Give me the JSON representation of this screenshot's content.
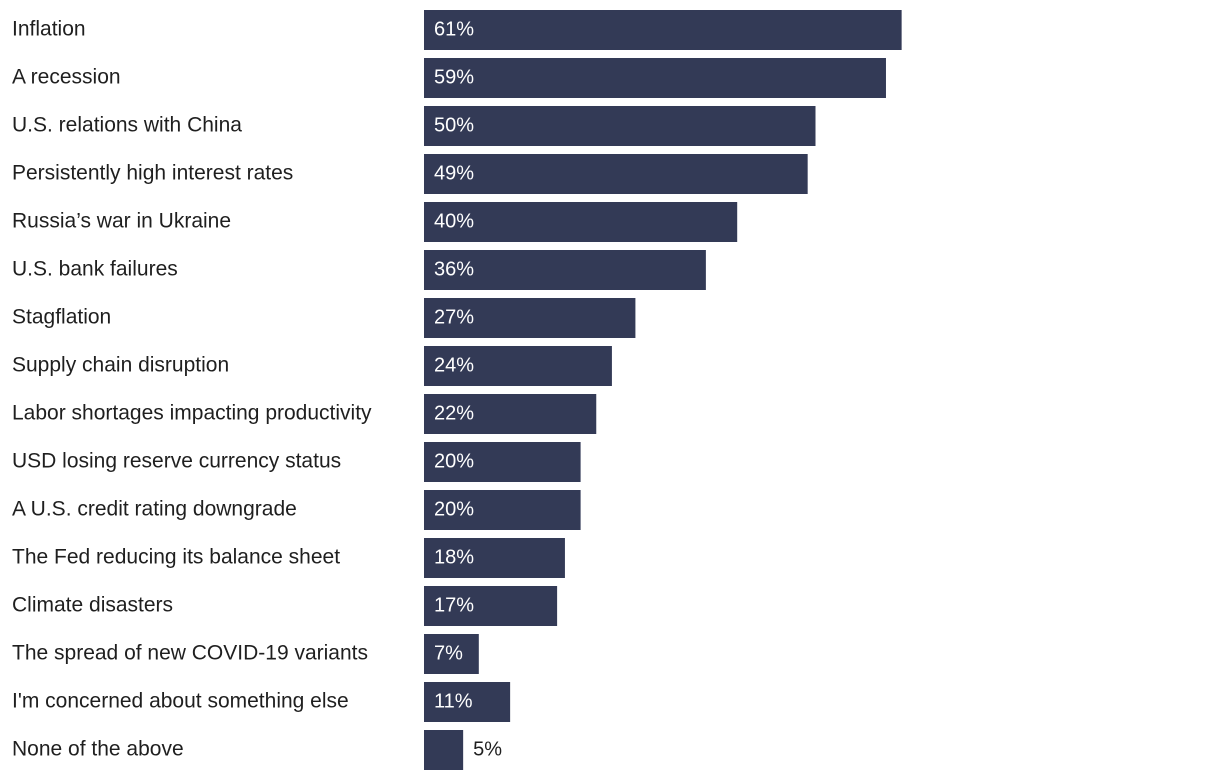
{
  "chart_data": {
    "type": "bar",
    "orientation": "horizontal",
    "title": "",
    "xlabel": "",
    "ylabel": "",
    "xlim": [
      0,
      100
    ],
    "unit_suffix": "%",
    "bar_color": "#333a56",
    "label_inside_color": "#ffffff",
    "label_outside_color": "#1f1f1f",
    "categories": [
      "Inflation",
      "A recession",
      "U.S. relations with China",
      "Persistently high interest rates",
      "Russia’s war in Ukraine",
      "U.S. bank failures",
      "Stagflation",
      "Supply chain disruption",
      "Labor shortages impacting productivity",
      "USD losing reserve currency status",
      "A U.S. credit rating downgrade",
      "The Fed reducing its balance sheet",
      "Climate disasters",
      "The spread of new COVID-19 variants",
      "I'm concerned about something else",
      "None of the above"
    ],
    "values": [
      61,
      59,
      50,
      49,
      40,
      36,
      27,
      24,
      22,
      20,
      20,
      18,
      17,
      7,
      11,
      5
    ],
    "value_labels": [
      "61%",
      "59%",
      "50%",
      "49%",
      "40%",
      "36%",
      "27%",
      "24%",
      "22%",
      "20%",
      "20%",
      "18%",
      "17%",
      "7%",
      "11%",
      "5%"
    ]
  }
}
